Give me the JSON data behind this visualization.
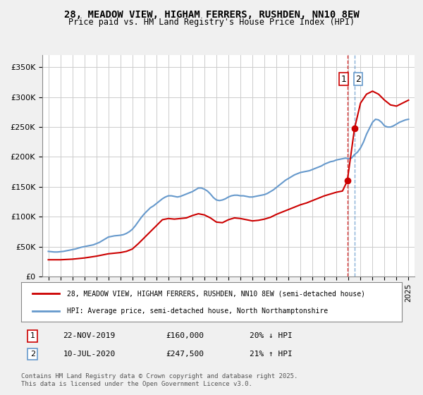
{
  "title_line1": "28, MEADOW VIEW, HIGHAM FERRERS, RUSHDEN, NN10 8EW",
  "title_line2": "Price paid vs. HM Land Registry's House Price Index (HPI)",
  "ylabel": "",
  "xlabel": "",
  "ylim": [
    0,
    370000
  ],
  "yticks": [
    0,
    50000,
    100000,
    150000,
    200000,
    250000,
    300000,
    350000
  ],
  "ytick_labels": [
    "£0",
    "£50K",
    "£100K",
    "£150K",
    "£200K",
    "£250K",
    "£300K",
    "£350K"
  ],
  "bg_color": "#f0f0f0",
  "plot_bg_color": "#ffffff",
  "grid_color": "#cccccc",
  "line1_color": "#cc0000",
  "line2_color": "#6699cc",
  "legend1_label": "28, MEADOW VIEW, HIGHAM FERRERS, RUSHDEN, NN10 8EW (semi-detached house)",
  "legend2_label": "HPI: Average price, semi-detached house, North Northamptonshire",
  "transaction1_date": "22-NOV-2019",
  "transaction1_price": "£160,000",
  "transaction1_hpi": "20% ↓ HPI",
  "transaction2_date": "10-JUL-2020",
  "transaction2_price": "£247,500",
  "transaction2_hpi": "21% ↑ HPI",
  "footer": "Contains HM Land Registry data © Crown copyright and database right 2025.\nThis data is licensed under the Open Government Licence v3.0.",
  "marker1_year": 2019.9,
  "marker1_value": 160000,
  "marker2_year": 2020.5,
  "marker2_value": 247500,
  "vline1_year": 2019.9,
  "vline2_year": 2020.5,
  "hpi_data": {
    "years": [
      1995.0,
      1995.25,
      1995.5,
      1995.75,
      1996.0,
      1996.25,
      1996.5,
      1996.75,
      1997.0,
      1997.25,
      1997.5,
      1997.75,
      1998.0,
      1998.25,
      1998.5,
      1998.75,
      1999.0,
      1999.25,
      1999.5,
      1999.75,
      2000.0,
      2000.25,
      2000.5,
      2000.75,
      2001.0,
      2001.25,
      2001.5,
      2001.75,
      2002.0,
      2002.25,
      2002.5,
      2002.75,
      2003.0,
      2003.25,
      2003.5,
      2003.75,
      2004.0,
      2004.25,
      2004.5,
      2004.75,
      2005.0,
      2005.25,
      2005.5,
      2005.75,
      2006.0,
      2006.25,
      2006.5,
      2006.75,
      2007.0,
      2007.25,
      2007.5,
      2007.75,
      2008.0,
      2008.25,
      2008.5,
      2008.75,
      2009.0,
      2009.25,
      2009.5,
      2009.75,
      2010.0,
      2010.25,
      2010.5,
      2010.75,
      2011.0,
      2011.25,
      2011.5,
      2011.75,
      2012.0,
      2012.25,
      2012.5,
      2012.75,
      2013.0,
      2013.25,
      2013.5,
      2013.75,
      2014.0,
      2014.25,
      2014.5,
      2014.75,
      2015.0,
      2015.25,
      2015.5,
      2015.75,
      2016.0,
      2016.25,
      2016.5,
      2016.75,
      2017.0,
      2017.25,
      2017.5,
      2017.75,
      2018.0,
      2018.25,
      2018.5,
      2018.75,
      2019.0,
      2019.25,
      2019.5,
      2019.75,
      2020.0,
      2020.25,
      2020.5,
      2020.75,
      2021.0,
      2021.25,
      2021.5,
      2021.75,
      2022.0,
      2022.25,
      2022.5,
      2022.75,
      2023.0,
      2023.25,
      2023.5,
      2023.75,
      2024.0,
      2024.25,
      2024.5,
      2024.75,
      2025.0
    ],
    "values": [
      42000,
      41500,
      41000,
      41000,
      41500,
      42000,
      43000,
      44000,
      45000,
      46000,
      47500,
      49000,
      50000,
      51000,
      52000,
      53000,
      55000,
      57000,
      60000,
      63000,
      66000,
      67000,
      68000,
      68500,
      69000,
      70000,
      72000,
      75000,
      79000,
      85000,
      92000,
      99000,
      105000,
      110000,
      115000,
      118000,
      122000,
      126000,
      130000,
      133000,
      135000,
      135000,
      134000,
      133000,
      134000,
      136000,
      138000,
      140000,
      142000,
      145000,
      148000,
      148000,
      146000,
      143000,
      138000,
      132000,
      128000,
      127000,
      128000,
      130000,
      133000,
      135000,
      136000,
      136000,
      135000,
      135000,
      134000,
      133000,
      133000,
      134000,
      135000,
      136000,
      137000,
      139000,
      142000,
      145000,
      149000,
      153000,
      157000,
      161000,
      164000,
      167000,
      170000,
      172000,
      174000,
      175000,
      176000,
      177000,
      179000,
      181000,
      183000,
      185000,
      188000,
      190000,
      192000,
      193000,
      195000,
      196000,
      197000,
      198000,
      197000,
      198000,
      204000,
      208000,
      215000,
      225000,
      238000,
      248000,
      258000,
      263000,
      262000,
      258000,
      252000,
      250000,
      250000,
      252000,
      255000,
      258000,
      260000,
      262000,
      263000
    ]
  },
  "price_data": {
    "years": [
      1995.0,
      1995.5,
      1996.0,
      1996.5,
      1997.0,
      1997.5,
      1998.0,
      1998.5,
      1999.0,
      1999.5,
      2000.0,
      2000.5,
      2001.0,
      2001.5,
      2002.0,
      2002.5,
      2003.0,
      2003.5,
      2004.0,
      2004.5,
      2005.0,
      2005.5,
      2006.0,
      2006.5,
      2007.0,
      2007.5,
      2008.0,
      2008.5,
      2009.0,
      2009.5,
      2010.0,
      2010.5,
      2011.0,
      2011.5,
      2012.0,
      2012.5,
      2013.0,
      2013.5,
      2014.0,
      2014.5,
      2015.0,
      2015.5,
      2016.0,
      2016.5,
      2017.0,
      2017.5,
      2018.0,
      2018.5,
      2019.0,
      2019.5,
      2019.9,
      2020.5,
      2021.0,
      2021.5,
      2022.0,
      2022.5,
      2023.0,
      2023.5,
      2024.0,
      2024.5,
      2025.0
    ],
    "values": [
      28000,
      28000,
      28000,
      28500,
      29000,
      30000,
      31000,
      32500,
      34000,
      36000,
      38000,
      39000,
      40000,
      42000,
      46000,
      55000,
      65000,
      75000,
      85000,
      95000,
      97000,
      96000,
      97000,
      98000,
      102000,
      105000,
      103000,
      98000,
      91000,
      90000,
      95000,
      98000,
      97000,
      95000,
      93000,
      94000,
      96000,
      99000,
      104000,
      108000,
      112000,
      116000,
      120000,
      123000,
      127000,
      131000,
      135000,
      138000,
      141000,
      143000,
      160000,
      247500,
      290000,
      305000,
      310000,
      305000,
      295000,
      287000,
      285000,
      290000,
      295000
    ]
  },
  "xtick_years": [
    1995,
    1996,
    1997,
    1998,
    1999,
    2000,
    2001,
    2002,
    2003,
    2004,
    2005,
    2006,
    2007,
    2008,
    2009,
    2010,
    2011,
    2012,
    2013,
    2014,
    2015,
    2016,
    2017,
    2018,
    2019,
    2020,
    2021,
    2022,
    2023,
    2024,
    2025
  ]
}
